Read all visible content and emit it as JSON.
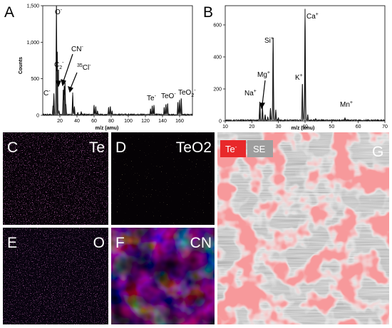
{
  "panels": {
    "A": "A",
    "B": "B",
    "C": "C",
    "D": "D",
    "E": "E",
    "F": "F",
    "G": "G",
    "C_el": "Te",
    "D_el": "TeO2",
    "E_el": "O",
    "F_el": "CN",
    "legend_te": "Te",
    "legend_te_sup": "-",
    "legend_se": "SE"
  },
  "colors": {
    "te_overlay": "#e8282a",
    "se_box": "#9e9e9e",
    "map_dark": "#070208",
    "map_purple": "#b0309a",
    "map_hot": "#f5d230"
  },
  "chart_data": [
    {
      "type": "line",
      "panel": "A",
      "ylabel": "Counts",
      "xlabel": "m/z (amu)",
      "xlim": [
        0,
        175
      ],
      "ylim": [
        0,
        1500
      ],
      "xticks": [
        "20",
        "40",
        "60",
        "80",
        "100",
        "120",
        "140",
        "160"
      ],
      "yticks": [
        "0",
        "500",
        "1,000",
        "1,500"
      ],
      "grid": false,
      "peaks": [
        {
          "x": 12,
          "y": 130
        },
        {
          "x": 13,
          "y": 300
        },
        {
          "x": 16,
          "y": 1500
        },
        {
          "x": 17,
          "y": 870
        },
        {
          "x": 19,
          "y": 60
        },
        {
          "x": 24,
          "y": 350
        },
        {
          "x": 25,
          "y": 400
        },
        {
          "x": 26,
          "y": 450
        },
        {
          "x": 27,
          "y": 150
        },
        {
          "x": 35,
          "y": 310
        },
        {
          "x": 37,
          "y": 120
        },
        {
          "x": 41,
          "y": 40
        },
        {
          "x": 45,
          "y": 50
        },
        {
          "x": 60,
          "y": 140
        },
        {
          "x": 62,
          "y": 120
        },
        {
          "x": 64,
          "y": 60
        },
        {
          "x": 77,
          "y": 110
        },
        {
          "x": 79,
          "y": 120
        },
        {
          "x": 81,
          "y": 60
        },
        {
          "x": 126,
          "y": 90
        },
        {
          "x": 128,
          "y": 130
        },
        {
          "x": 130,
          "y": 140
        },
        {
          "x": 142,
          "y": 110
        },
        {
          "x": 144,
          "y": 150
        },
        {
          "x": 146,
          "y": 160
        },
        {
          "x": 158,
          "y": 180
        },
        {
          "x": 160,
          "y": 210
        },
        {
          "x": 162,
          "y": 230
        }
      ],
      "annotations": [
        {
          "text": "O",
          "sup": "-"
        },
        {
          "text": "CN",
          "sup": "-"
        },
        {
          "text": "C",
          "sub": "2",
          "sup": "-"
        },
        {
          "text": "Cl",
          "pre": "35",
          "sup": "-"
        },
        {
          "text": "C",
          "sup": "-"
        },
        {
          "text": "Te",
          "sup": "-"
        },
        {
          "text": "TeO",
          "sup": "-"
        },
        {
          "text": "TeO",
          "sub": "2",
          "sup": "-"
        }
      ]
    },
    {
      "type": "line",
      "panel": "B",
      "xlabel": "m/z (amu)",
      "xlim": [
        10,
        70
      ],
      "ylim": [
        0,
        720
      ],
      "xticks": [
        "10",
        "20",
        "30",
        "40",
        "50",
        "60",
        "70"
      ],
      "yticks": [
        "0",
        "200",
        "400",
        "600"
      ],
      "grid": false,
      "peaks": [
        {
          "x": 23,
          "y": 120
        },
        {
          "x": 24,
          "y": 90
        },
        {
          "x": 25,
          "y": 40
        },
        {
          "x": 26,
          "y": 25
        },
        {
          "x": 27,
          "y": 80
        },
        {
          "x": 28,
          "y": 520
        },
        {
          "x": 29,
          "y": 70
        },
        {
          "x": 30,
          "y": 20
        },
        {
          "x": 39,
          "y": 230
        },
        {
          "x": 40,
          "y": 700
        },
        {
          "x": 41,
          "y": 40
        },
        {
          "x": 44,
          "y": 15
        },
        {
          "x": 55,
          "y": 20
        },
        {
          "x": 56,
          "y": 10
        }
      ],
      "annotations": [
        {
          "text": "Ca",
          "sup": "+"
        },
        {
          "text": "Si",
          "sup": "+"
        },
        {
          "text": "Mg",
          "sup": "+"
        },
        {
          "text": "Na",
          "sup": "+"
        },
        {
          "text": "K",
          "sup": "+"
        },
        {
          "text": "Mn",
          "sup": "+"
        }
      ]
    }
  ]
}
